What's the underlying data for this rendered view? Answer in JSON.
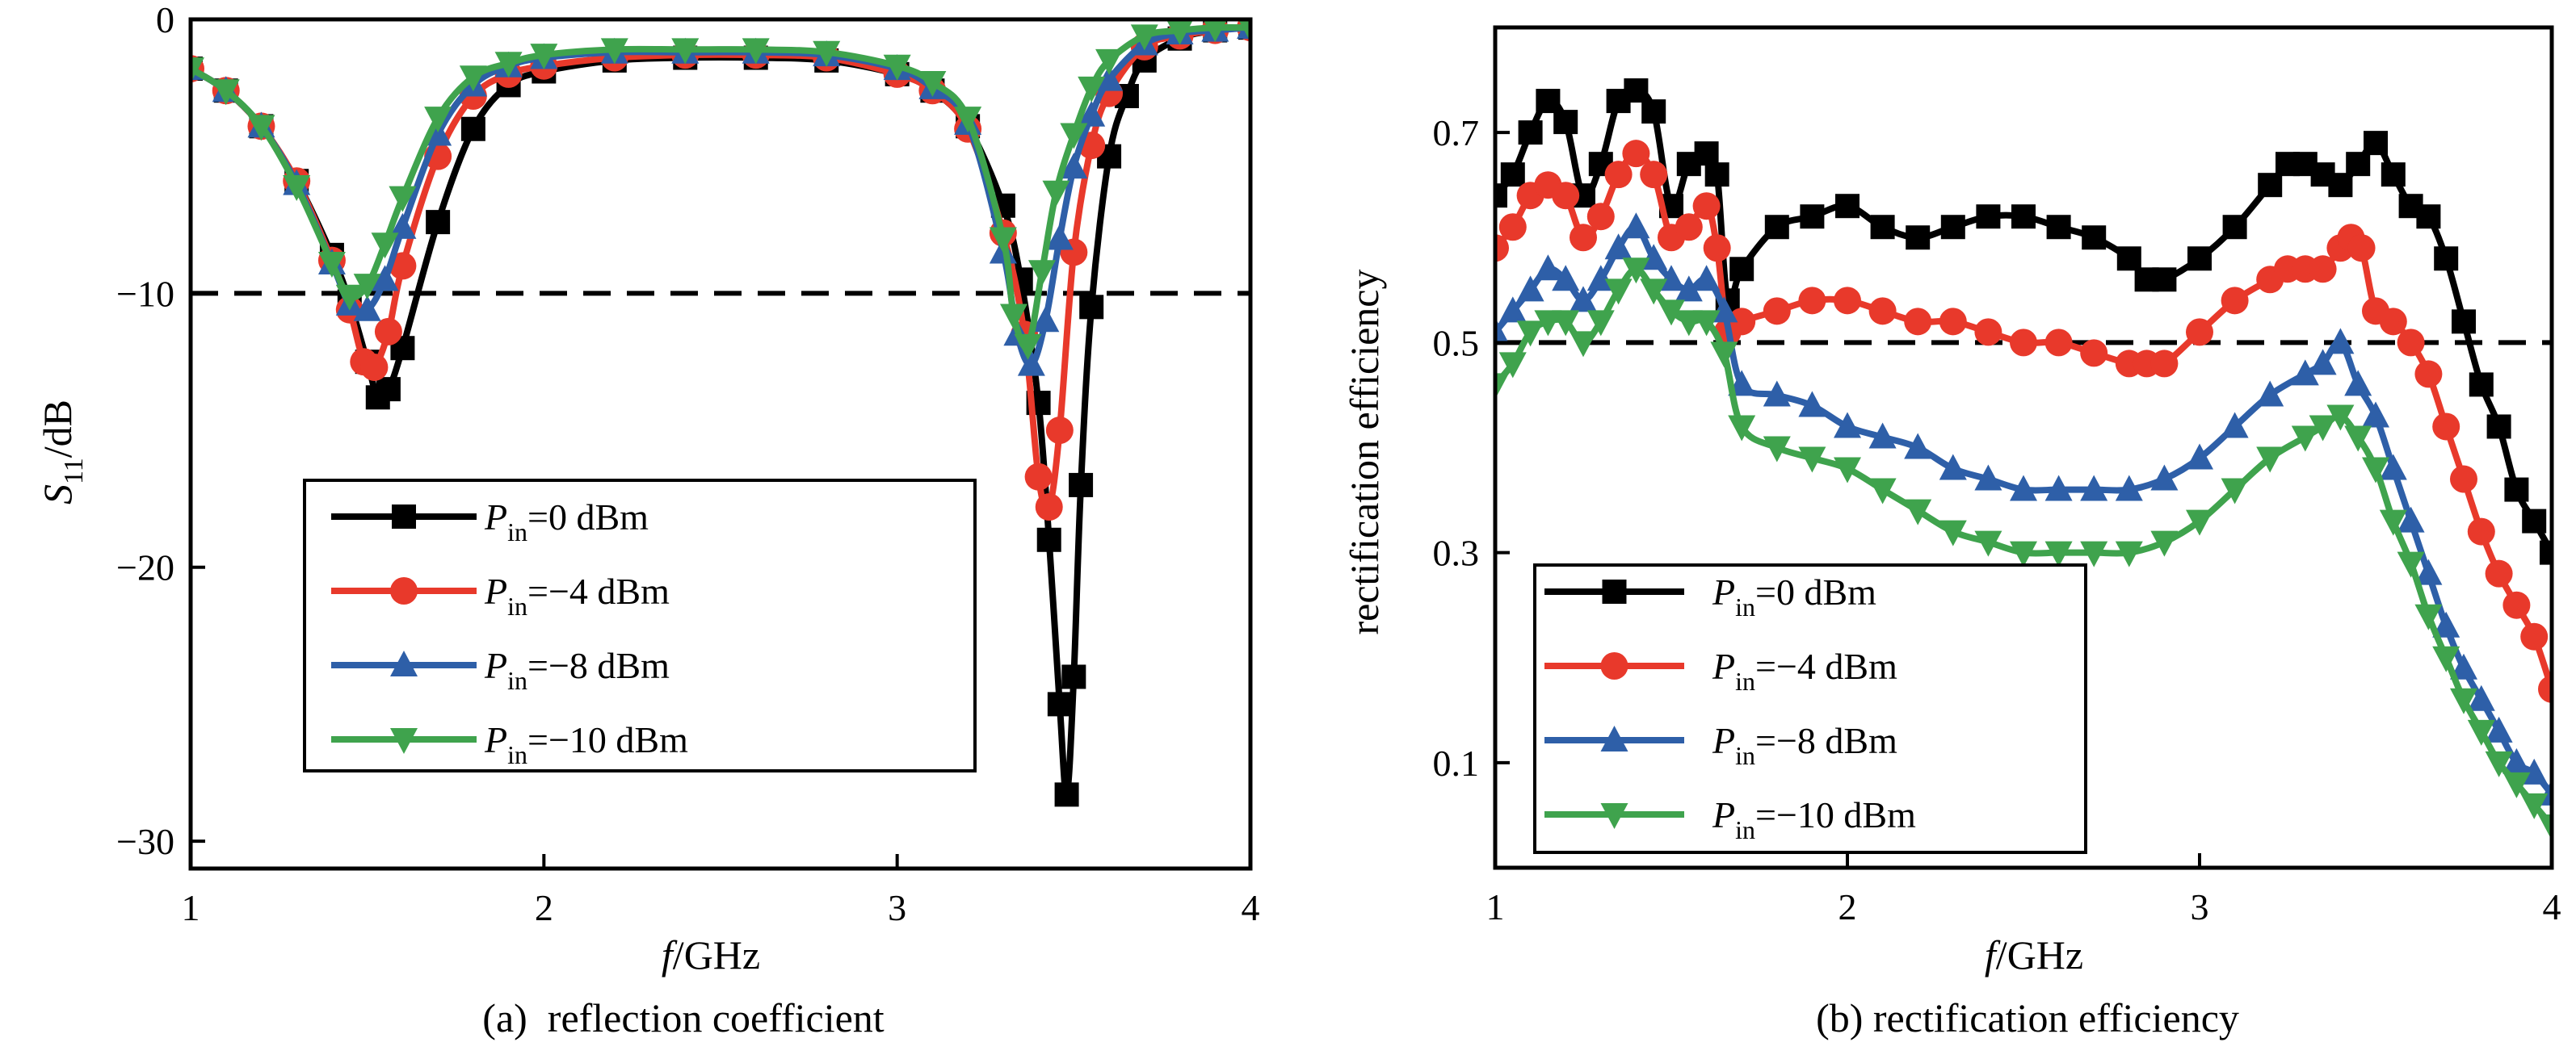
{
  "chart_data": [
    {
      "type": "line",
      "caption": "(a)  reflection coefficient",
      "xlabel": "f/GHz",
      "ylabel": "S11/dB",
      "xlim": [
        1,
        4
      ],
      "ylim": [
        -31,
        0
      ],
      "xticks": [
        "1",
        "2",
        "3",
        "4"
      ],
      "yticks": [
        "0",
        "−10",
        "−20",
        "−30"
      ],
      "reference_line": -10,
      "legend": {
        "location": "lower-left"
      },
      "series": [
        {
          "name": "Pin=0 dBm",
          "color": "#000000",
          "marker": "square",
          "x": [
            1.0,
            1.1,
            1.2,
            1.3,
            1.4,
            1.45,
            1.5,
            1.53,
            1.56,
            1.6,
            1.7,
            1.8,
            1.9,
            2.0,
            2.2,
            2.4,
            2.6,
            2.8,
            3.0,
            3.1,
            3.2,
            3.3,
            3.35,
            3.4,
            3.43,
            3.46,
            3.48,
            3.5,
            3.52,
            3.55,
            3.6,
            3.65,
            3.7,
            3.8,
            3.9,
            4.0
          ],
          "y": [
            -1.8,
            -2.6,
            -3.9,
            -5.9,
            -8.6,
            -10.3,
            -12.5,
            -13.8,
            -13.5,
            -12.0,
            -7.4,
            -4.0,
            -2.4,
            -1.9,
            -1.5,
            -1.4,
            -1.4,
            -1.5,
            -2.0,
            -2.6,
            -3.9,
            -6.8,
            -9.5,
            -14.0,
            -19.0,
            -25.0,
            -28.3,
            -24.0,
            -17.0,
            -10.5,
            -5.0,
            -2.8,
            -1.5,
            -0.7,
            -0.4,
            -0.3
          ]
        },
        {
          "name": "Pin=−4 dBm",
          "color": "#e8392b",
          "marker": "circle",
          "x": [
            1.0,
            1.1,
            1.2,
            1.3,
            1.4,
            1.45,
            1.49,
            1.52,
            1.56,
            1.6,
            1.7,
            1.8,
            1.9,
            2.0,
            2.2,
            2.4,
            2.6,
            2.8,
            3.0,
            3.1,
            3.2,
            3.3,
            3.36,
            3.4,
            3.43,
            3.46,
            3.5,
            3.55,
            3.6,
            3.7,
            3.8,
            3.9,
            4.0
          ],
          "y": [
            -1.8,
            -2.6,
            -3.9,
            -5.9,
            -8.8,
            -10.6,
            -12.5,
            -12.7,
            -11.4,
            -9.0,
            -5.0,
            -2.8,
            -2.0,
            -1.7,
            -1.4,
            -1.3,
            -1.3,
            -1.4,
            -2.0,
            -2.6,
            -4.0,
            -7.8,
            -11.5,
            -16.7,
            -17.8,
            -15.0,
            -8.5,
            -4.6,
            -2.7,
            -1.0,
            -0.6,
            -0.4,
            -0.3
          ]
        },
        {
          "name": "Pin=−8 dBm",
          "color": "#2e5fa8",
          "marker": "triangle-up",
          "x": [
            1.0,
            1.1,
            1.2,
            1.3,
            1.4,
            1.45,
            1.5,
            1.55,
            1.6,
            1.7,
            1.8,
            1.9,
            2.0,
            2.2,
            2.4,
            2.6,
            2.8,
            3.0,
            3.1,
            3.2,
            3.3,
            3.34,
            3.38,
            3.42,
            3.46,
            3.5,
            3.55,
            3.6,
            3.7,
            3.8,
            3.9,
            4.0
          ],
          "y": [
            -1.8,
            -2.6,
            -3.9,
            -6.0,
            -8.9,
            -10.4,
            -10.6,
            -9.5,
            -7.6,
            -4.2,
            -2.4,
            -1.7,
            -1.4,
            -1.2,
            -1.2,
            -1.2,
            -1.3,
            -1.8,
            -2.5,
            -3.8,
            -8.5,
            -11.5,
            -12.6,
            -11.0,
            -8.0,
            -5.4,
            -3.5,
            -2.2,
            -0.9,
            -0.5,
            -0.4,
            -0.3
          ]
        },
        {
          "name": "Pin=−10 dBm",
          "color": "#3fa34d",
          "marker": "triangle-down",
          "x": [
            1.0,
            1.1,
            1.2,
            1.3,
            1.4,
            1.45,
            1.5,
            1.55,
            1.6,
            1.7,
            1.8,
            1.9,
            2.0,
            2.2,
            2.4,
            2.6,
            2.8,
            3.0,
            3.1,
            3.2,
            3.3,
            3.33,
            3.37,
            3.41,
            3.45,
            3.5,
            3.55,
            3.6,
            3.7,
            3.8,
            3.9,
            4.0
          ],
          "y": [
            -1.8,
            -2.6,
            -3.9,
            -6.1,
            -8.9,
            -10.1,
            -9.7,
            -8.2,
            -6.5,
            -3.6,
            -2.1,
            -1.6,
            -1.3,
            -1.1,
            -1.1,
            -1.1,
            -1.2,
            -1.7,
            -2.3,
            -3.6,
            -8.0,
            -10.8,
            -11.9,
            -9.2,
            -6.3,
            -4.2,
            -2.5,
            -1.5,
            -0.6,
            -0.4,
            -0.3,
            -0.3
          ]
        }
      ]
    },
    {
      "type": "line",
      "caption": "(b) rectification efficiency",
      "xlabel": "f/GHz",
      "ylabel": "rectification efficiency",
      "xlim": [
        1,
        4
      ],
      "ylim": [
        0,
        0.8
      ],
      "xticks": [
        "1",
        "2",
        "3",
        "4"
      ],
      "yticks": [
        "0.1",
        "0.3",
        "0.5",
        "0.7"
      ],
      "reference_line": 0.5,
      "legend": {
        "location": "lower-left"
      },
      "series": [
        {
          "name": "Pin=0 dBm",
          "color": "#000000",
          "marker": "square",
          "x": [
            1.0,
            1.05,
            1.1,
            1.15,
            1.2,
            1.25,
            1.3,
            1.35,
            1.4,
            1.45,
            1.5,
            1.55,
            1.6,
            1.63,
            1.66,
            1.7,
            1.8,
            1.9,
            2.0,
            2.1,
            2.2,
            2.3,
            2.4,
            2.5,
            2.6,
            2.7,
            2.8,
            2.85,
            2.9,
            3.0,
            3.1,
            3.2,
            3.25,
            3.3,
            3.35,
            3.4,
            3.45,
            3.5,
            3.55,
            3.6,
            3.65,
            3.7,
            3.75,
            3.8,
            3.85,
            3.9,
            3.95,
            4.0
          ],
          "y": [
            0.64,
            0.66,
            0.7,
            0.73,
            0.71,
            0.64,
            0.67,
            0.73,
            0.74,
            0.72,
            0.63,
            0.67,
            0.68,
            0.66,
            0.54,
            0.57,
            0.61,
            0.62,
            0.63,
            0.61,
            0.6,
            0.61,
            0.62,
            0.62,
            0.61,
            0.6,
            0.58,
            0.56,
            0.56,
            0.58,
            0.61,
            0.65,
            0.67,
            0.67,
            0.66,
            0.65,
            0.67,
            0.69,
            0.66,
            0.63,
            0.62,
            0.58,
            0.52,
            0.46,
            0.42,
            0.36,
            0.33,
            0.3
          ]
        },
        {
          "name": "Pin=−4 dBm",
          "color": "#e8392b",
          "marker": "circle",
          "x": [
            1.0,
            1.05,
            1.1,
            1.15,
            1.2,
            1.25,
            1.3,
            1.35,
            1.4,
            1.45,
            1.5,
            1.55,
            1.6,
            1.63,
            1.66,
            1.7,
            1.8,
            1.9,
            2.0,
            2.1,
            2.2,
            2.3,
            2.4,
            2.5,
            2.6,
            2.7,
            2.8,
            2.85,
            2.9,
            3.0,
            3.1,
            3.2,
            3.25,
            3.3,
            3.35,
            3.4,
            3.43,
            3.46,
            3.5,
            3.55,
            3.6,
            3.65,
            3.7,
            3.75,
            3.8,
            3.85,
            3.9,
            3.95,
            4.0
          ],
          "y": [
            0.59,
            0.61,
            0.64,
            0.65,
            0.64,
            0.6,
            0.62,
            0.66,
            0.68,
            0.66,
            0.6,
            0.61,
            0.63,
            0.59,
            0.51,
            0.52,
            0.53,
            0.54,
            0.54,
            0.53,
            0.52,
            0.52,
            0.51,
            0.5,
            0.5,
            0.49,
            0.48,
            0.48,
            0.48,
            0.51,
            0.54,
            0.56,
            0.57,
            0.57,
            0.57,
            0.59,
            0.6,
            0.59,
            0.53,
            0.52,
            0.5,
            0.47,
            0.42,
            0.37,
            0.32,
            0.28,
            0.25,
            0.22,
            0.17
          ]
        },
        {
          "name": "Pin=−8 dBm",
          "color": "#2e5fa8",
          "marker": "triangle-up",
          "x": [
            1.0,
            1.05,
            1.1,
            1.15,
            1.2,
            1.25,
            1.3,
            1.35,
            1.4,
            1.45,
            1.5,
            1.55,
            1.6,
            1.65,
            1.7,
            1.8,
            1.9,
            2.0,
            2.1,
            2.2,
            2.3,
            2.4,
            2.5,
            2.6,
            2.7,
            2.8,
            2.9,
            3.0,
            3.1,
            3.2,
            3.3,
            3.35,
            3.4,
            3.45,
            3.5,
            3.55,
            3.6,
            3.65,
            3.7,
            3.75,
            3.8,
            3.85,
            3.9,
            3.95,
            4.0
          ],
          "y": [
            0.51,
            0.53,
            0.55,
            0.57,
            0.56,
            0.54,
            0.56,
            0.59,
            0.61,
            0.58,
            0.56,
            0.55,
            0.56,
            0.53,
            0.46,
            0.45,
            0.44,
            0.42,
            0.41,
            0.4,
            0.38,
            0.37,
            0.36,
            0.36,
            0.36,
            0.36,
            0.37,
            0.39,
            0.42,
            0.45,
            0.47,
            0.48,
            0.5,
            0.46,
            0.43,
            0.38,
            0.33,
            0.28,
            0.23,
            0.19,
            0.16,
            0.13,
            0.1,
            0.09,
            0.07
          ]
        },
        {
          "name": "Pin=−10 dBm",
          "color": "#3fa34d",
          "marker": "triangle-down",
          "x": [
            1.0,
            1.05,
            1.1,
            1.15,
            1.2,
            1.25,
            1.3,
            1.35,
            1.4,
            1.45,
            1.5,
            1.55,
            1.6,
            1.65,
            1.7,
            1.8,
            1.9,
            2.0,
            2.1,
            2.2,
            2.3,
            2.4,
            2.5,
            2.6,
            2.7,
            2.8,
            2.9,
            3.0,
            3.1,
            3.2,
            3.3,
            3.35,
            3.4,
            3.45,
            3.5,
            3.55,
            3.6,
            3.65,
            3.7,
            3.75,
            3.8,
            3.85,
            3.9,
            3.95,
            4.0
          ],
          "y": [
            0.46,
            0.48,
            0.51,
            0.52,
            0.52,
            0.5,
            0.52,
            0.55,
            0.57,
            0.55,
            0.53,
            0.52,
            0.52,
            0.49,
            0.42,
            0.4,
            0.39,
            0.38,
            0.36,
            0.34,
            0.32,
            0.31,
            0.3,
            0.3,
            0.3,
            0.3,
            0.31,
            0.33,
            0.36,
            0.39,
            0.41,
            0.42,
            0.43,
            0.41,
            0.38,
            0.33,
            0.29,
            0.24,
            0.2,
            0.16,
            0.13,
            0.1,
            0.08,
            0.06,
            0.04
          ]
        }
      ]
    }
  ]
}
